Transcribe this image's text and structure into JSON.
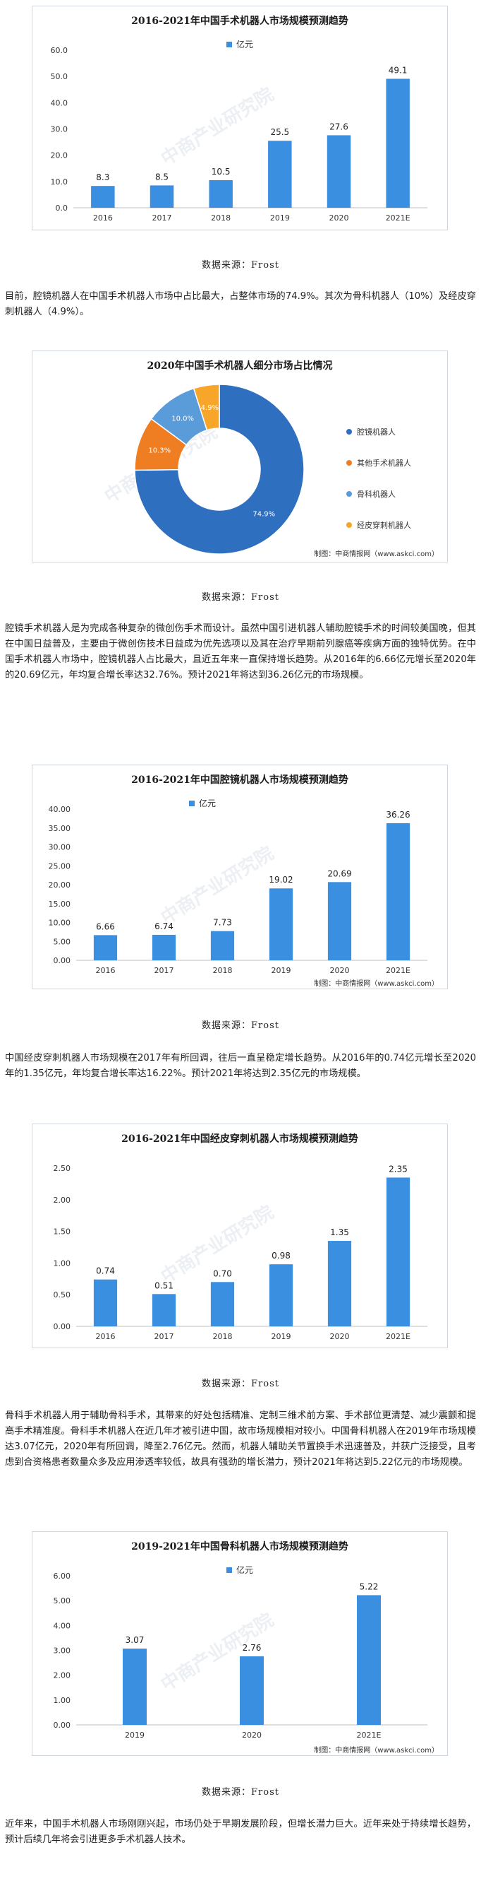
{
  "colors": {
    "bar": "#3b8fe1",
    "pie": [
      "#2f6fbf",
      "#ef7d22",
      "#5a9bd9",
      "#f7a629"
    ]
  },
  "source_text": "数据来源：Frost",
  "watermark": "中商产业研究院",
  "corner_note": "制图：中商情报网（www.askci.com）",
  "paragraphs": [
    "目前，腔镜机器人在中国手术机器人市场中占比最大，占整体市场的74.9%。其次为骨科机器人（10%）及经皮穿刺机器人（4.9%）。",
    "腔镜手术机器人是为完成各种复杂的微创伤手术而设计。虽然中国引进机器人辅助腔镜手术的时间较美国晚，但其在中国日益普及，主要由于微创伤技术日益成为优先选项以及其在治疗早期前列腺癌等疾病方面的独特优势。在中国手术机器人市场中，腔镜机器人占比最大，且近五年来一直保持增长趋势。从2016年的6.66亿元增长至2020年的20.69亿元，年均复合增长率达32.76%。预计2021年将达到36.26亿元的市场规模。",
    "中国经皮穿刺机器人市场规模在2017年有所回调，往后一直呈稳定增长趋势。从2016年的0.74亿元增长至2020年的1.35亿元，年均复合增长率达16.22%。预计2021年将达到2.35亿元的市场规模。",
    "骨科手术机器人用于辅助骨科手术，其带来的好处包括精准、定制三维术前方案、手术部位更清楚、减少震颤和提高手术精准度。骨科手术机器人在近几年才被引进中国，故市场规模相对较小。中国骨科机器人在2019年市场规模达3.07亿元，2020年有所回调，降至2.76亿元。然而，机器人辅助关节置换手术迅速普及，并获广泛接受，且考虑到合资格患者数量众多及应用渗透率较低，故具有强劲的增长潜力，预计2021年将达到5.22亿元的市场规模。",
    "近年来，中国手术机器人市场刚刚兴起，市场仍处于早期发展阶段，但增长潜力巨大。近年来处于持续增长趋势，预计后续几年将会引进更多手术机器人技术。"
  ],
  "chart_data": [
    {
      "type": "bar",
      "title": "2016-2021年中国手术机器人市场规模预测趋势",
      "series": [
        {
          "name": "亿元",
          "values": [
            8.3,
            8.5,
            10.5,
            25.5,
            27.6,
            49.1
          ]
        }
      ],
      "categories": [
        "2016",
        "2017",
        "2018",
        "2019",
        "2020",
        "2021E"
      ],
      "value_labels": [
        "8.3",
        "8.5",
        "10.5",
        "25.5",
        "27.6",
        "49.1"
      ],
      "yticks": [
        "0.0",
        "10.0",
        "20.0",
        "30.0",
        "40.0",
        "50.0",
        "60.0"
      ],
      "ylim": [
        0,
        60
      ]
    },
    {
      "type": "pie",
      "title": "2020年中国手术机器人细分市场占比情况",
      "categories": [
        "腔镜机器人",
        "其他手术机器人",
        "骨科机器人",
        "经皮穿刺机器人"
      ],
      "values": [
        74.9,
        10.3,
        10.0,
        4.9
      ],
      "value_labels": [
        "74.9%",
        "10.3%",
        "10.0%",
        "4.9%"
      ]
    },
    {
      "type": "bar",
      "title": "2016-2021年中国腔镜机器人市场规模预测趋势",
      "series": [
        {
          "name": "亿元",
          "values": [
            6.66,
            6.74,
            7.73,
            19.02,
            20.69,
            36.26
          ]
        }
      ],
      "categories": [
        "2016",
        "2017",
        "2018",
        "2019",
        "2020",
        "2021E"
      ],
      "value_labels": [
        "6.66",
        "6.74",
        "7.73",
        "19.02",
        "20.69",
        "36.26"
      ],
      "yticks": [
        "0.00",
        "5.00",
        "10.00",
        "15.00",
        "20.00",
        "25.00",
        "30.00",
        "35.00",
        "40.00"
      ],
      "ylim": [
        0,
        40
      ]
    },
    {
      "type": "bar",
      "title": "2016-2021年中国经皮穿刺机器人市场规模预测趋势",
      "series": [
        {
          "name": "亿元",
          "values": [
            0.74,
            0.51,
            0.7,
            0.98,
            1.35,
            2.35
          ]
        }
      ],
      "categories": [
        "2016",
        "2017",
        "2018",
        "2019",
        "2020",
        "2021E"
      ],
      "value_labels": [
        "0.74",
        "0.51",
        "0.70",
        "0.98",
        "1.35",
        "2.35"
      ],
      "yticks": [
        "0.00",
        "0.50",
        "1.00",
        "1.50",
        "2.00",
        "2.50"
      ],
      "ylim": [
        0,
        2.5
      ]
    },
    {
      "type": "bar",
      "title": "2019-2021年中国骨科机器人市场规模预测趋势",
      "series": [
        {
          "name": "亿元",
          "values": [
            3.07,
            2.76,
            5.22
          ]
        }
      ],
      "categories": [
        "2019",
        "2020",
        "2021E"
      ],
      "value_labels": [
        "3.07",
        "2.76",
        "5.22"
      ],
      "yticks": [
        "0.00",
        "1.00",
        "2.00",
        "3.00",
        "4.00",
        "5.00",
        "6.00"
      ],
      "ylim": [
        0,
        6
      ]
    }
  ]
}
